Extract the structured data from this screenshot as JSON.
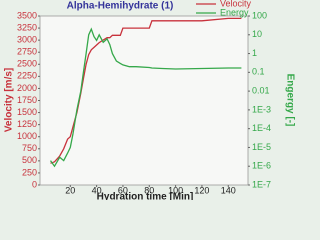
{
  "chart_data": {
    "type": "line",
    "title": "Alpha-Hemihydrate (1)",
    "x_label": "Hydration time [Min]",
    "y_label": "Velocity [m/s]",
    "y2_label": "Engergy [-]",
    "x": [
      5,
      8,
      12,
      15,
      18,
      20,
      22,
      25,
      28,
      30,
      32,
      34,
      36,
      38,
      40,
      42,
      45,
      48,
      50,
      52,
      55,
      58,
      60,
      65,
      70,
      80,
      82,
      90,
      100,
      120,
      140,
      150
    ],
    "series": [
      {
        "name": "Velocity",
        "color": "#c8323c",
        "values": [
          450,
          480,
          600,
          750,
          950,
          1000,
          1200,
          1500,
          1900,
          2200,
          2500,
          2700,
          2800,
          2850,
          2900,
          2950,
          3000,
          3050,
          3050,
          3100,
          3100,
          3100,
          3250,
          3250,
          3250,
          3250,
          3400,
          3400,
          3400,
          3400,
          3450,
          3450
        ]
      },
      {
        "name": "Energy",
        "color": "#35a84a",
        "axis": "y2",
        "values": [
          2e-06,
          1e-06,
          3e-06,
          2e-06,
          5e-06,
          1e-05,
          5e-05,
          0.001,
          0.01,
          0.1,
          1,
          10,
          20,
          8,
          5,
          10,
          4,
          6,
          3,
          1,
          0.4,
          0.3,
          0.25,
          0.2,
          0.2,
          0.18,
          0.17,
          0.16,
          0.15,
          0.16,
          0.17,
          0.17
        ]
      }
    ],
    "xlim": [
      -3,
      155
    ],
    "xticks": [
      20,
      40,
      60,
      80,
      100,
      120,
      140
    ],
    "ylim": [
      0,
      3500
    ],
    "yticks": [
      0,
      250,
      500,
      750,
      1000,
      1250,
      1500,
      1750,
      2000,
      2250,
      2500,
      2750,
      3000,
      3250,
      3500
    ],
    "y2lim": [
      1e-07,
      100
    ],
    "y2log": true,
    "y2ticks": [
      100,
      10,
      1,
      0.1,
      0.01,
      {
        "value": 0.001,
        "label": "1E-3"
      },
      {
        "value": 0.0001,
        "label": "1E-4"
      },
      {
        "value": 1e-05,
        "label": "1E-5"
      },
      {
        "value": 1e-06,
        "label": "1E-6"
      },
      {
        "value": 1e-07,
        "label": "1E-7"
      }
    ],
    "legend": "upper right"
  }
}
